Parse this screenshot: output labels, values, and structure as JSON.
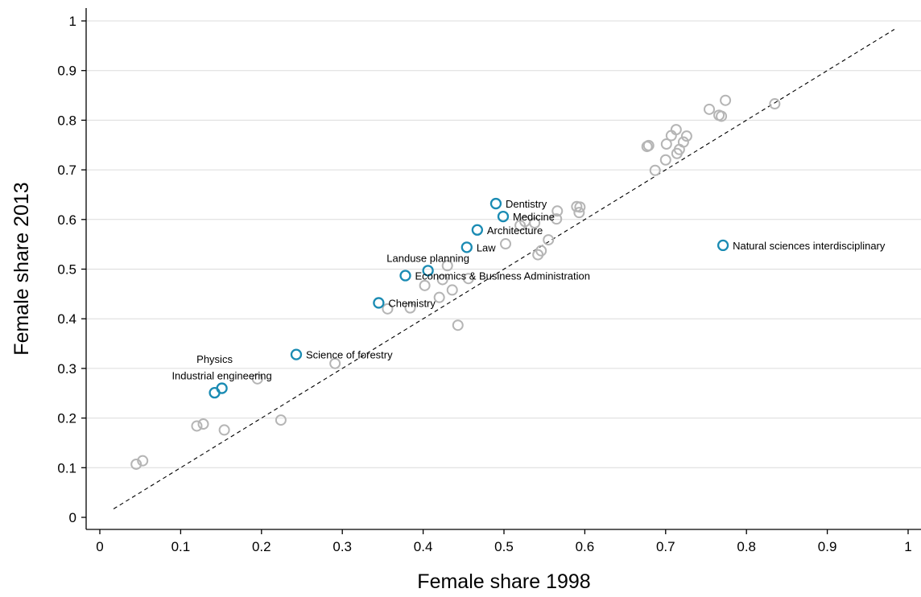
{
  "chart_data": {
    "type": "scatter",
    "title": "",
    "xlabel": "Female share 1998",
    "ylabel": "Female share 2013",
    "xlim": [
      0,
      1
    ],
    "ylim": [
      0,
      1
    ],
    "x_ticks": [
      "0",
      "0.1",
      "0.2",
      "0.3",
      "0.4",
      "0.5",
      "0.6",
      "0.7",
      "0.8",
      "0.9",
      "1"
    ],
    "y_ticks": [
      "0",
      "0.1",
      "0.2",
      "0.3",
      "0.4",
      "0.5",
      "0.6",
      "0.7",
      "0.8",
      "0.9",
      "1"
    ],
    "grid": "horizontal",
    "reference_line": {
      "style": "dashed",
      "from": [
        0.017,
        0.017
      ],
      "to": [
        0.983,
        0.983
      ]
    },
    "colors": {
      "highlight": "#1a8bb3",
      "other": "#b5b5b5",
      "grid": "#dcdcdc"
    },
    "highlighted": [
      {
        "label": "Dentistry",
        "x": 0.49,
        "y": 0.632
      },
      {
        "label": "Medicine",
        "x": 0.499,
        "y": 0.606
      },
      {
        "label": "Architecture",
        "x": 0.467,
        "y": 0.579
      },
      {
        "label": "Law",
        "x": 0.454,
        "y": 0.544
      },
      {
        "label": "Landuse planning",
        "x": 0.406,
        "y": 0.497
      },
      {
        "label": "Economics & Business Administration",
        "x": 0.378,
        "y": 0.487
      },
      {
        "label": "Chemistry",
        "x": 0.345,
        "y": 0.432
      },
      {
        "label": "Science of forestry",
        "x": 0.243,
        "y": 0.328
      },
      {
        "label": "Industrial engineering",
        "x": 0.151,
        "y": 0.26
      },
      {
        "label": "Physics",
        "x": 0.142,
        "y": 0.251
      },
      {
        "label": "Natural sciences interdisciplinary",
        "x": 0.771,
        "y": 0.548
      }
    ],
    "others": [
      [
        0.045,
        0.107
      ],
      [
        0.053,
        0.114
      ],
      [
        0.12,
        0.184
      ],
      [
        0.128,
        0.188
      ],
      [
        0.154,
        0.176
      ],
      [
        0.195,
        0.279
      ],
      [
        0.224,
        0.196
      ],
      [
        0.291,
        0.31
      ],
      [
        0.356,
        0.42
      ],
      [
        0.384,
        0.422
      ],
      [
        0.402,
        0.467
      ],
      [
        0.42,
        0.443
      ],
      [
        0.424,
        0.479
      ],
      [
        0.43,
        0.507
      ],
      [
        0.436,
        0.458
      ],
      [
        0.443,
        0.387
      ],
      [
        0.456,
        0.481
      ],
      [
        0.502,
        0.551
      ],
      [
        0.52,
        0.588
      ],
      [
        0.526,
        0.596
      ],
      [
        0.538,
        0.593
      ],
      [
        0.542,
        0.529
      ],
      [
        0.546,
        0.537
      ],
      [
        0.555,
        0.559
      ],
      [
        0.565,
        0.601
      ],
      [
        0.566,
        0.617
      ],
      [
        0.59,
        0.626
      ],
      [
        0.594,
        0.625
      ],
      [
        0.593,
        0.614
      ],
      [
        0.677,
        0.747
      ],
      [
        0.679,
        0.749
      ],
      [
        0.687,
        0.699
      ],
      [
        0.7,
        0.72
      ],
      [
        0.701,
        0.752
      ],
      [
        0.707,
        0.769
      ],
      [
        0.713,
        0.781
      ],
      [
        0.714,
        0.733
      ],
      [
        0.717,
        0.741
      ],
      [
        0.722,
        0.756
      ],
      [
        0.726,
        0.768
      ],
      [
        0.754,
        0.822
      ],
      [
        0.766,
        0.81
      ],
      [
        0.769,
        0.808
      ],
      [
        0.774,
        0.84
      ],
      [
        0.835,
        0.833
      ]
    ]
  }
}
